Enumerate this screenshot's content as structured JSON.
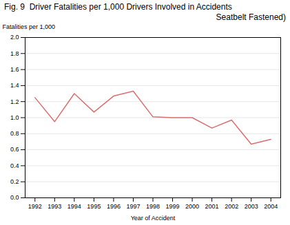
{
  "chart_data": {
    "type": "line",
    "title": "Fig. 9  Driver Fatalities per 1,000 Drivers Involved in Accidents",
    "subtitle": "Seatbelt Fastened)",
    "x_label": "Year of Accident",
    "y_label": "Fatalities per 1,000",
    "x": [
      1992,
      1993,
      1994,
      1995,
      1996,
      1997,
      1998,
      1999,
      2000,
      2001,
      2002,
      2003,
      2004
    ],
    "values": [
      1.25,
      0.95,
      1.3,
      1.07,
      1.27,
      1.33,
      1.01,
      1.0,
      1.0,
      0.87,
      0.97,
      0.67,
      0.73
    ],
    "color": "#d87070",
    "xlim": [
      1991.5,
      2004.5
    ],
    "xticks": [
      1992,
      1993,
      1994,
      1995,
      1996,
      1997,
      1998,
      1999,
      2000,
      2001,
      2002,
      2003,
      2004
    ],
    "ylim": [
      0.0,
      2.0
    ],
    "yticks": [
      {
        "value": 0.0,
        "label": "0.0"
      },
      0.2,
      0.4,
      0.6,
      0.8,
      {
        "value": 1.0,
        "label": "1.0"
      },
      1.2,
      1.4,
      1.6,
      1.8,
      {
        "value": 2.0,
        "label": "2.0"
      }
    ],
    "grid": true
  }
}
